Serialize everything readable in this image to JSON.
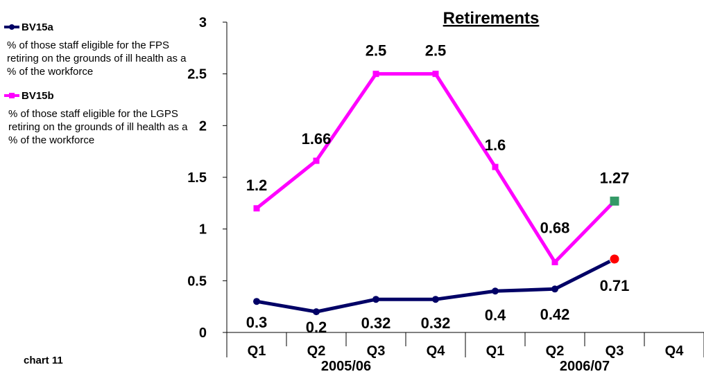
{
  "chart_data": {
    "type": "line",
    "title": "Retirements",
    "ylim": [
      0,
      3
    ],
    "yticks": [
      "0",
      "0.5",
      "1",
      "1.5",
      "2",
      "2.5",
      "3"
    ],
    "categories": [
      "Q1",
      "Q2",
      "Q3",
      "Q4",
      "Q1",
      "Q2",
      "Q3",
      "Q4"
    ],
    "groups": [
      {
        "label": "2005/06"
      },
      {
        "label": "2006/07"
      }
    ],
    "series": [
      {
        "name": "BV15a",
        "description": "% of those staff eligible for the FPS retiring on the grounds of ill health as a % of the workforce",
        "color": "#000066",
        "marker": "circle",
        "values": [
          0.3,
          0.2,
          0.32,
          0.32,
          0.4,
          0.42,
          0.71,
          null
        ],
        "labels": [
          "0.3",
          "0.2",
          "0.32",
          "0.32",
          "0.4",
          "0.42",
          "0.71",
          ""
        ],
        "highlight_last": {
          "fill": "#ff0000"
        }
      },
      {
        "name": "BV15b",
        "description": "% of those staff eligible for the LGPS retiring on the grounds of ill health as a % of the workforce",
        "color": "#ff00ff",
        "marker": "square",
        "values": [
          1.2,
          1.66,
          2.5,
          2.5,
          1.6,
          0.68,
          1.27,
          null
        ],
        "labels": [
          "1.2",
          "1.66",
          "2.5",
          "2.5",
          "1.6",
          "0.68",
          "1.27",
          ""
        ],
        "highlight_last": {
          "fill": "#339966"
        }
      }
    ],
    "grid": false,
    "legend_position": "left"
  },
  "footnote": "chart 11"
}
